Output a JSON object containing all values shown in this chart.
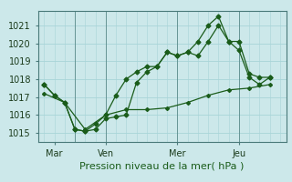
{
  "bg_color": "#cce8ea",
  "grid_color_h": "#a8d4d8",
  "grid_color_v": "#a8d4d8",
  "line_color": "#1a5c1a",
  "xlabel": "Pression niveau de la mer( hPa )",
  "xlabel_fontsize": 8,
  "ytick_fontsize": 7,
  "xtick_fontsize": 7,
  "yticks": [
    1015,
    1016,
    1017,
    1018,
    1019,
    1020,
    1021
  ],
  "ylim": [
    1014.5,
    1021.8
  ],
  "xlim": [
    -0.3,
    11.8
  ],
  "xtick_labels": [
    "Mar",
    "Ven",
    "Mer",
    "Jeu"
  ],
  "xtick_positions": [
    0.5,
    3.0,
    6.5,
    9.5
  ],
  "vline_positions": [
    1.5,
    3.0,
    6.5,
    9.5
  ],
  "vline_color": "#5a8a8a",
  "line1_x": [
    0.0,
    0.5,
    1.0,
    1.5,
    2.0,
    2.5,
    3.0,
    3.5,
    4.0,
    4.5,
    5.0,
    5.5,
    6.0,
    6.5,
    7.0,
    7.5,
    8.0,
    8.5,
    9.0,
    9.5,
    10.0,
    10.5,
    11.0
  ],
  "line1_y": [
    1017.7,
    1017.1,
    1016.7,
    1015.2,
    1015.1,
    1015.2,
    1015.8,
    1015.9,
    1016.0,
    1017.8,
    1018.4,
    1018.7,
    1019.5,
    1019.3,
    1019.5,
    1019.3,
    1020.1,
    1021.0,
    1020.1,
    1020.1,
    1018.3,
    1018.1,
    1018.1
  ],
  "line2_x": [
    0.0,
    0.5,
    1.0,
    1.5,
    2.0,
    2.5,
    3.0,
    3.5,
    4.0,
    4.5,
    5.0,
    5.5,
    6.0,
    6.5,
    7.0,
    7.5,
    8.0,
    8.5,
    9.0,
    9.5,
    10.0,
    10.5,
    11.0
  ],
  "line2_y": [
    1017.7,
    1017.1,
    1016.7,
    1015.2,
    1015.1,
    1015.5,
    1016.0,
    1017.1,
    1018.0,
    1018.4,
    1018.7,
    1018.7,
    1019.5,
    1019.3,
    1019.5,
    1020.1,
    1021.0,
    1021.5,
    1020.1,
    1019.6,
    1018.1,
    1017.7,
    1018.1
  ],
  "line3_x": [
    0.0,
    1.0,
    2.0,
    3.0,
    4.0,
    5.0,
    6.0,
    7.0,
    8.0,
    9.0,
    10.0,
    11.0
  ],
  "line3_y": [
    1017.2,
    1016.7,
    1015.2,
    1016.0,
    1016.3,
    1016.3,
    1016.4,
    1016.7,
    1017.1,
    1017.4,
    1017.5,
    1017.7
  ],
  "figsize": [
    3.2,
    2.0
  ],
  "dpi": 100
}
